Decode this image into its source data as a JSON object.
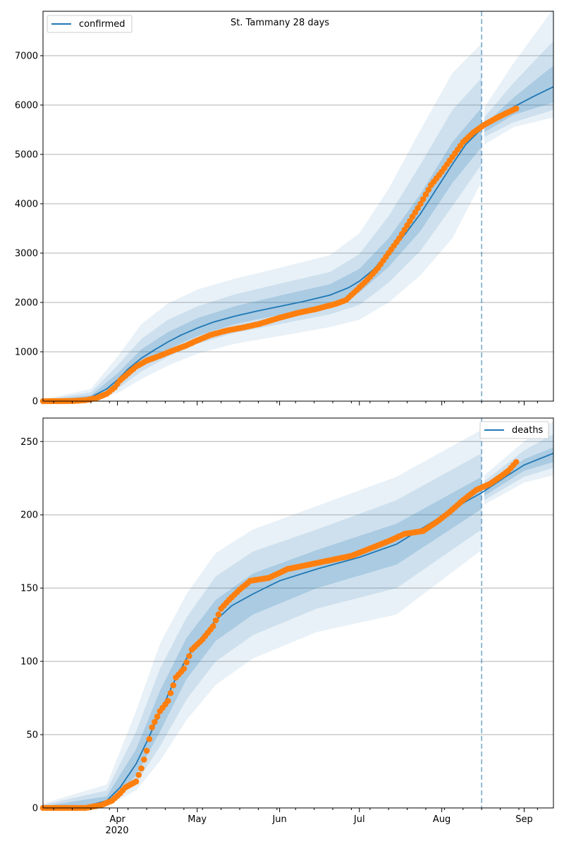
{
  "title": "St. Tammany 28 days",
  "colors": {
    "model_line": "#1f77b4",
    "observed_points": "#ff7f0e",
    "band": "#1f77b4",
    "forecast_line": "#1f77b4",
    "grid": "#b0b0b0"
  },
  "x_axis": {
    "month_ticks": [
      {
        "label": "Apr",
        "date": "2020-04-01"
      },
      {
        "label": "May",
        "date": "2020-05-01"
      },
      {
        "label": "Jun",
        "date": "2020-06-01"
      },
      {
        "label": "Jul",
        "date": "2020-07-01"
      },
      {
        "label": "Aug",
        "date": "2020-08-01"
      },
      {
        "label": "Sep",
        "date": "2020-09-01"
      }
    ],
    "year_label": "2020",
    "range": [
      "2020-03-04",
      "2020-09-12"
    ]
  },
  "forecast_start": "2020-08-16",
  "chart_data": [
    {
      "type": "line",
      "title": "St. Tammany 28 days",
      "legend": {
        "label": "confirmed",
        "position": "top-left"
      },
      "ylim": [
        0,
        7900
      ],
      "yticks": [
        0,
        1000,
        2000,
        3000,
        4000,
        5000,
        6000,
        7000
      ],
      "grid": true,
      "model": [
        {
          "x": "2020-03-04",
          "y": 5
        },
        {
          "x": "2020-03-15",
          "y": 20
        },
        {
          "x": "2020-03-22",
          "y": 80
        },
        {
          "x": "2020-03-28",
          "y": 250
        },
        {
          "x": "2020-04-01",
          "y": 430
        },
        {
          "x": "2020-04-05",
          "y": 650
        },
        {
          "x": "2020-04-10",
          "y": 870
        },
        {
          "x": "2020-04-15",
          "y": 1040
        },
        {
          "x": "2020-04-20",
          "y": 1200
        },
        {
          "x": "2020-04-25",
          "y": 1340
        },
        {
          "x": "2020-05-01",
          "y": 1480
        },
        {
          "x": "2020-05-07",
          "y": 1600
        },
        {
          "x": "2020-05-15",
          "y": 1720
        },
        {
          "x": "2020-05-23",
          "y": 1820
        },
        {
          "x": "2020-06-01",
          "y": 1920
        },
        {
          "x": "2020-06-10",
          "y": 2020
        },
        {
          "x": "2020-06-20",
          "y": 2150
        },
        {
          "x": "2020-06-27",
          "y": 2300
        },
        {
          "x": "2020-07-01",
          "y": 2430
        },
        {
          "x": "2020-07-06",
          "y": 2650
        },
        {
          "x": "2020-07-12",
          "y": 3000
        },
        {
          "x": "2020-07-18",
          "y": 3370
        },
        {
          "x": "2020-07-24",
          "y": 3800
        },
        {
          "x": "2020-07-30",
          "y": 4300
        },
        {
          "x": "2020-08-05",
          "y": 4800
        },
        {
          "x": "2020-08-10",
          "y": 5200
        },
        {
          "x": "2020-08-16",
          "y": 5520
        },
        {
          "x": "2020-08-22",
          "y": 5760
        },
        {
          "x": "2020-08-28",
          "y": 5960
        },
        {
          "x": "2020-09-04",
          "y": 6160
        },
        {
          "x": "2020-09-12",
          "y": 6370
        }
      ],
      "bands": [
        {
          "x": "2020-03-04",
          "lo": [
            0,
            0,
            0
          ],
          "hi": [
            10,
            20,
            30
          ]
        },
        {
          "x": "2020-03-22",
          "lo": [
            40,
            20,
            5
          ],
          "hi": [
            120,
            180,
            250
          ]
        },
        {
          "x": "2020-04-01",
          "lo": [
            330,
            250,
            160
          ],
          "hi": [
            560,
            720,
            900
          ]
        },
        {
          "x": "2020-04-10",
          "lo": [
            720,
            600,
            450
          ],
          "hi": [
            1050,
            1260,
            1560
          ]
        },
        {
          "x": "2020-04-20",
          "lo": [
            1050,
            900,
            720
          ],
          "hi": [
            1400,
            1650,
            1980
          ]
        },
        {
          "x": "2020-05-01",
          "lo": [
            1320,
            1160,
            960
          ],
          "hi": [
            1680,
            1920,
            2260
          ]
        },
        {
          "x": "2020-05-15",
          "lo": [
            1560,
            1380,
            1160
          ],
          "hi": [
            1920,
            2160,
            2480
          ]
        },
        {
          "x": "2020-06-01",
          "lo": [
            1750,
            1560,
            1320
          ],
          "hi": [
            2140,
            2380,
            2700
          ]
        },
        {
          "x": "2020-06-20",
          "lo": [
            1960,
            1760,
            1500
          ],
          "hi": [
            2370,
            2620,
            2960
          ]
        },
        {
          "x": "2020-07-01",
          "lo": [
            2200,
            1950,
            1650
          ],
          "hi": [
            2680,
            2980,
            3400
          ]
        },
        {
          "x": "2020-07-12",
          "lo": [
            2720,
            2400,
            2000
          ],
          "hi": [
            3300,
            3750,
            4300
          ]
        },
        {
          "x": "2020-07-24",
          "lo": [
            3450,
            3050,
            2550
          ],
          "hi": [
            4200,
            4800,
            5500
          ]
        },
        {
          "x": "2020-08-05",
          "lo": [
            4420,
            3950,
            3300
          ],
          "hi": [
            5250,
            5900,
            6650
          ]
        },
        {
          "x": "2020-08-16",
          "lo": [
            5150,
            4800,
            4450
          ],
          "hi": [
            5950,
            6550,
            7250
          ]
        },
        {
          "x": "2020-08-17",
          "lo": [
            5450,
            5350,
            5200
          ],
          "hi": [
            5600,
            5750,
            5950
          ]
        },
        {
          "x": "2020-08-28",
          "lo": [
            5800,
            5650,
            5550
          ],
          "hi": [
            6150,
            6450,
            6850
          ]
        },
        {
          "x": "2020-09-12",
          "lo": [
            6050,
            5900,
            5750
          ],
          "hi": [
            6800,
            7300,
            7950
          ]
        }
      ],
      "observed": [
        {
          "x": "2020-03-04",
          "y": 0
        },
        {
          "x": "2020-03-15",
          "y": 3
        },
        {
          "x": "2020-03-20",
          "y": 20
        },
        {
          "x": "2020-03-24",
          "y": 60
        },
        {
          "x": "2020-03-28",
          "y": 150
        },
        {
          "x": "2020-03-31",
          "y": 280
        },
        {
          "x": "2020-04-02",
          "y": 420
        },
        {
          "x": "2020-04-05",
          "y": 560
        },
        {
          "x": "2020-04-08",
          "y": 700
        },
        {
          "x": "2020-04-12",
          "y": 820
        },
        {
          "x": "2020-04-17",
          "y": 920
        },
        {
          "x": "2020-04-22",
          "y": 1030
        },
        {
          "x": "2020-04-27",
          "y": 1130
        },
        {
          "x": "2020-05-01",
          "y": 1230
        },
        {
          "x": "2020-05-06",
          "y": 1340
        },
        {
          "x": "2020-05-12",
          "y": 1430
        },
        {
          "x": "2020-05-18",
          "y": 1490
        },
        {
          "x": "2020-05-24",
          "y": 1560
        },
        {
          "x": "2020-06-01",
          "y": 1690
        },
        {
          "x": "2020-06-08",
          "y": 1790
        },
        {
          "x": "2020-06-15",
          "y": 1870
        },
        {
          "x": "2020-06-22",
          "y": 1970
        },
        {
          "x": "2020-06-26",
          "y": 2050
        },
        {
          "x": "2020-06-30",
          "y": 2250
        },
        {
          "x": "2020-07-04",
          "y": 2460
        },
        {
          "x": "2020-07-08",
          "y": 2700
        },
        {
          "x": "2020-07-12",
          "y": 3000
        },
        {
          "x": "2020-07-16",
          "y": 3300
        },
        {
          "x": "2020-07-20",
          "y": 3650
        },
        {
          "x": "2020-07-24",
          "y": 4000
        },
        {
          "x": "2020-07-28",
          "y": 4380
        },
        {
          "x": "2020-08-01",
          "y": 4650
        },
        {
          "x": "2020-08-05",
          "y": 4950
        },
        {
          "x": "2020-08-09",
          "y": 5250
        },
        {
          "x": "2020-08-13",
          "y": 5450
        },
        {
          "x": "2020-08-17",
          "y": 5600
        },
        {
          "x": "2020-08-21",
          "y": 5720
        },
        {
          "x": "2020-08-25",
          "y": 5830
        },
        {
          "x": "2020-08-29",
          "y": 5930
        }
      ]
    },
    {
      "type": "line",
      "legend": {
        "label": "deaths",
        "position": "top-right"
      },
      "ylim": [
        0,
        266
      ],
      "yticks": [
        0,
        50,
        100,
        150,
        200,
        250
      ],
      "grid": true,
      "model": [
        {
          "x": "2020-03-04",
          "y": 0
        },
        {
          "x": "2020-03-20",
          "y": 1
        },
        {
          "x": "2020-03-28",
          "y": 5
        },
        {
          "x": "2020-04-02",
          "y": 14
        },
        {
          "x": "2020-04-08",
          "y": 30
        },
        {
          "x": "2020-04-12",
          "y": 45
        },
        {
          "x": "2020-04-17",
          "y": 65
        },
        {
          "x": "2020-04-22",
          "y": 85
        },
        {
          "x": "2020-04-27",
          "y": 102
        },
        {
          "x": "2020-05-02",
          "y": 115
        },
        {
          "x": "2020-05-08",
          "y": 128
        },
        {
          "x": "2020-05-14",
          "y": 138
        },
        {
          "x": "2020-05-22",
          "y": 146
        },
        {
          "x": "2020-06-01",
          "y": 155
        },
        {
          "x": "2020-06-15",
          "y": 163
        },
        {
          "x": "2020-07-01",
          "y": 171
        },
        {
          "x": "2020-07-15",
          "y": 180
        },
        {
          "x": "2020-08-01",
          "y": 199
        },
        {
          "x": "2020-08-10",
          "y": 209
        },
        {
          "x": "2020-08-16",
          "y": 215
        },
        {
          "x": "2020-08-25",
          "y": 226
        },
        {
          "x": "2020-09-01",
          "y": 234
        },
        {
          "x": "2020-09-12",
          "y": 242
        }
      ],
      "bands": [
        {
          "x": "2020-03-04",
          "lo": [
            0,
            0,
            0
          ],
          "hi": [
            1,
            2,
            3
          ]
        },
        {
          "x": "2020-03-28",
          "lo": [
            3,
            2,
            1
          ],
          "hi": [
            8,
            12,
            16
          ]
        },
        {
          "x": "2020-04-08",
          "lo": [
            22,
            17,
            12
          ],
          "hi": [
            40,
            52,
            66
          ]
        },
        {
          "x": "2020-04-17",
          "lo": [
            52,
            42,
            32
          ],
          "hi": [
            80,
            95,
            112
          ]
        },
        {
          "x": "2020-04-27",
          "lo": [
            88,
            74,
            60
          ],
          "hi": [
            116,
            130,
            146
          ]
        },
        {
          "x": "2020-05-08",
          "lo": [
            114,
            100,
            84
          ],
          "hi": [
            142,
            158,
            174
          ]
        },
        {
          "x": "2020-05-22",
          "lo": [
            132,
            118,
            102
          ],
          "hi": [
            160,
            175,
            190
          ]
        },
        {
          "x": "2020-06-15",
          "lo": [
            150,
            136,
            120
          ],
          "hi": [
            176,
            190,
            206
          ]
        },
        {
          "x": "2020-07-15",
          "lo": [
            166,
            150,
            132
          ],
          "hi": [
            194,
            210,
            226
          ]
        },
        {
          "x": "2020-08-16",
          "lo": [
            204,
            190,
            176
          ],
          "hi": [
            226,
            242,
            258
          ]
        },
        {
          "x": "2020-08-17",
          "lo": [
            213,
            210,
            207
          ],
          "hi": [
            219,
            223,
            227
          ]
        },
        {
          "x": "2020-09-01",
          "lo": [
            230,
            226,
            222
          ],
          "hi": [
            238,
            244,
            250
          ]
        },
        {
          "x": "2020-09-12",
          "lo": [
            236,
            232,
            227
          ],
          "hi": [
            246,
            255,
            264
          ]
        }
      ],
      "observed": [
        {
          "x": "2020-03-04",
          "y": 0
        },
        {
          "x": "2020-03-20",
          "y": 0
        },
        {
          "x": "2020-03-26",
          "y": 2
        },
        {
          "x": "2020-03-30",
          "y": 5
        },
        {
          "x": "2020-04-02",
          "y": 10
        },
        {
          "x": "2020-04-04",
          "y": 14
        },
        {
          "x": "2020-04-08",
          "y": 18
        },
        {
          "x": "2020-04-10",
          "y": 27
        },
        {
          "x": "2020-04-12",
          "y": 39
        },
        {
          "x": "2020-04-14",
          "y": 55
        },
        {
          "x": "2020-04-17",
          "y": 66
        },
        {
          "x": "2020-04-20",
          "y": 73
        },
        {
          "x": "2020-04-23",
          "y": 89
        },
        {
          "x": "2020-04-26",
          "y": 95
        },
        {
          "x": "2020-04-29",
          "y": 108
        },
        {
          "x": "2020-05-03",
          "y": 115
        },
        {
          "x": "2020-05-07",
          "y": 124
        },
        {
          "x": "2020-05-10",
          "y": 136
        },
        {
          "x": "2020-05-13",
          "y": 142
        },
        {
          "x": "2020-05-17",
          "y": 149
        },
        {
          "x": "2020-05-21",
          "y": 155
        },
        {
          "x": "2020-05-28",
          "y": 157
        },
        {
          "x": "2020-06-04",
          "y": 163
        },
        {
          "x": "2020-06-12",
          "y": 166
        },
        {
          "x": "2020-06-20",
          "y": 169
        },
        {
          "x": "2020-06-28",
          "y": 172
        },
        {
          "x": "2020-07-05",
          "y": 177
        },
        {
          "x": "2020-07-12",
          "y": 182
        },
        {
          "x": "2020-07-18",
          "y": 187
        },
        {
          "x": "2020-07-25",
          "y": 189
        },
        {
          "x": "2020-07-30",
          "y": 195
        },
        {
          "x": "2020-08-04",
          "y": 202
        },
        {
          "x": "2020-08-09",
          "y": 210
        },
        {
          "x": "2020-08-14",
          "y": 217
        },
        {
          "x": "2020-08-19",
          "y": 221
        },
        {
          "x": "2020-08-23",
          "y": 226
        },
        {
          "x": "2020-08-26",
          "y": 230
        },
        {
          "x": "2020-08-29",
          "y": 236
        }
      ]
    }
  ]
}
